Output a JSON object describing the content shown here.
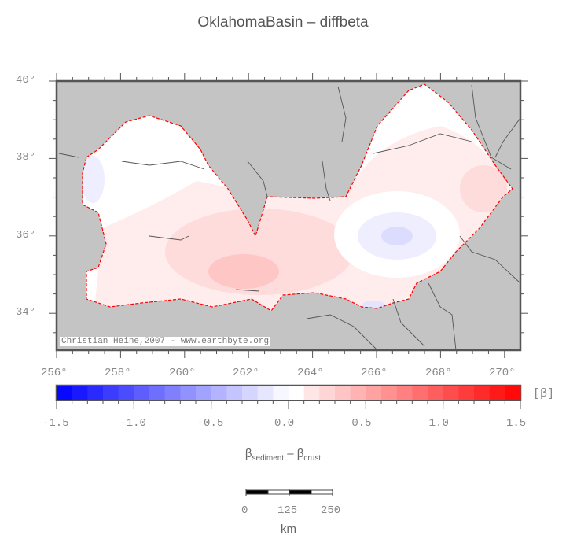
{
  "title": "OklahomaBasin – diffbeta",
  "map": {
    "lon_ticks": [
      "256°",
      "258°",
      "260°",
      "262°",
      "264°",
      "266°",
      "268°",
      "270°"
    ],
    "lat_ticks": [
      "40°",
      "38°",
      "36°",
      "34°"
    ],
    "credit": "Christian Heine,2007 - www.earthbyte.org",
    "land_color": "#c4c4c4",
    "basin_outline_color": "#ff0000"
  },
  "colorbar": {
    "min": -1.5,
    "max": 1.5,
    "step": 0.1,
    "tick_labels": [
      "-1.5",
      "-1.0",
      "-0.5",
      "0.0",
      "0.5",
      "1.0",
      "1.5"
    ],
    "unit": "[β]",
    "label_main1": "β",
    "label_sub1": "sediment",
    "label_mid": " – β",
    "label_sub2": "crust",
    "low_color": "#0000ff",
    "high_color": "#ff0000"
  },
  "scalebar": {
    "labels": [
      "0",
      "125",
      "250"
    ],
    "unit": "km"
  }
}
